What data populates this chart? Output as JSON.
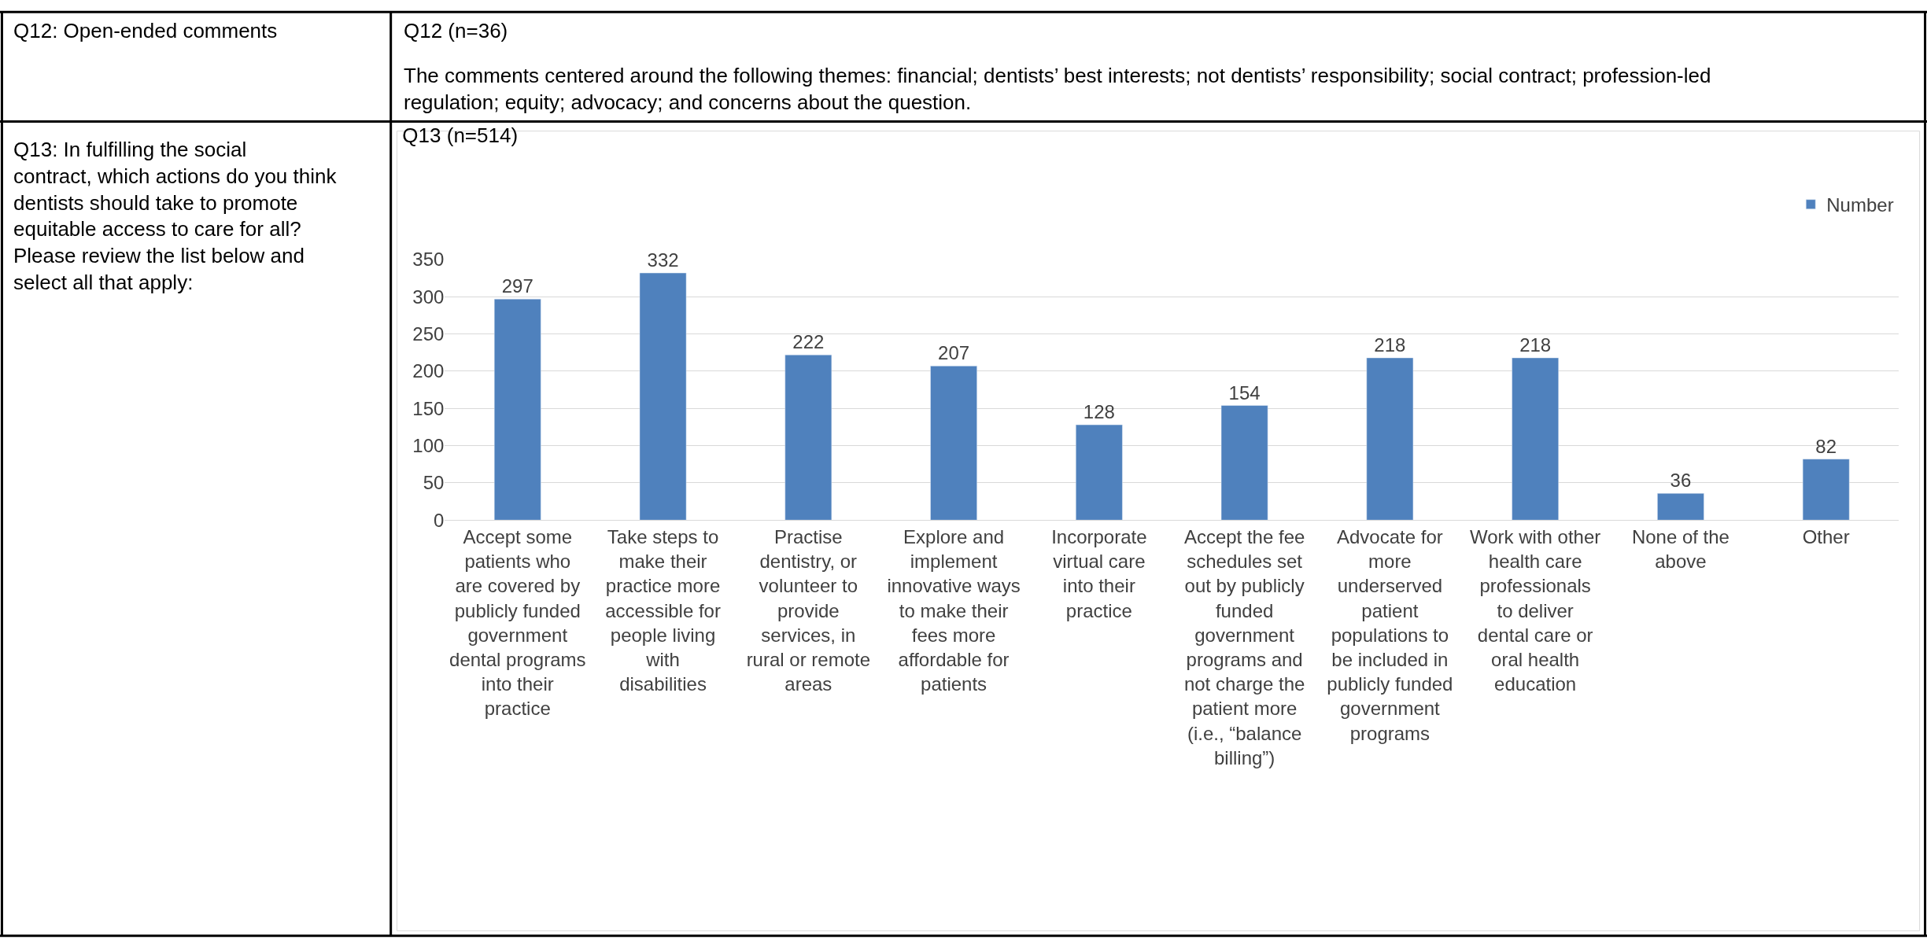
{
  "chart_data": {
    "type": "bar",
    "title": "Q13 (n=514)",
    "annotations": [
      "Q12: Open-ended comments",
      "Q12 (n=36)",
      "The comments centered around the following themes: financial; dentists’ best interests; not dentists’ responsibility; social contract; profession-led regulation; equity; advocacy; and concerns about the question.",
      "Q13: In fulfilling the social contract, which actions do you think dentists should take to promote equitable access to care for all? Please review the list below and select all that apply:"
    ],
    "categories": [
      "Accept some patients who are covered by publicly funded government dental programs into their practice",
      "Take steps to make their practice more accessible for people living with disabilities",
      "Practise dentistry, or volunteer to provide services, in rural or remote areas",
      "Explore and implement innovative ways to make their fees more affordable for patients",
      "Incorporate virtual care into their practice",
      "Accept the fee schedules set out by publicly funded government programs and not charge the patient more (i.e., “balance billing”)",
      "Advocate for more underserved patient populations to be included in publicly funded government programs",
      "Work with other health care professionals to deliver dental care or oral health education",
      "None of the above",
      "Other"
    ],
    "series": [
      {
        "name": "Number",
        "color": "#4f81bd",
        "values": [
          297,
          332,
          222,
          207,
          128,
          154,
          218,
          218,
          36,
          82
        ]
      }
    ],
    "ylim": [
      0,
      350
    ],
    "yticks": [
      0,
      50,
      100,
      150,
      200,
      250,
      300,
      350
    ],
    "grid": "y",
    "legend": "top right",
    "data_labels": true
  }
}
